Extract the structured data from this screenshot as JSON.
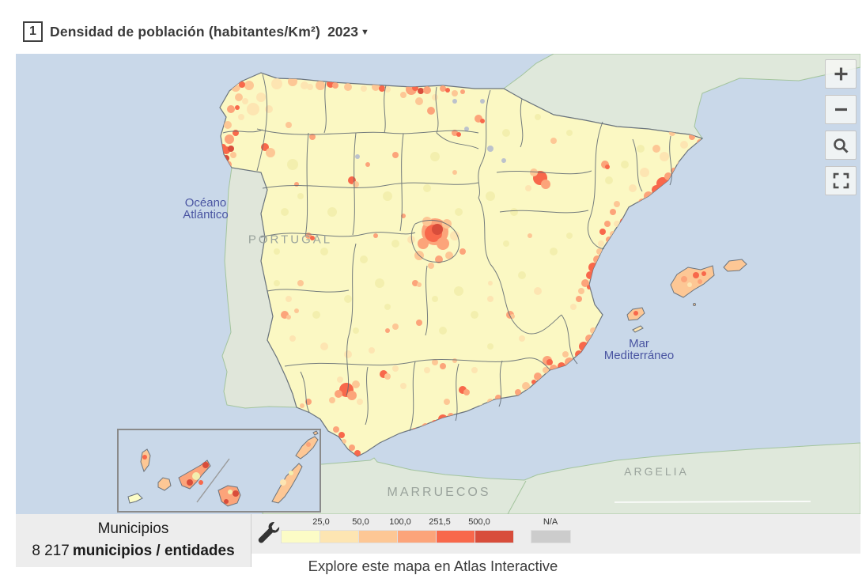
{
  "header": {
    "index": "1",
    "title": "Densidad de población (habitantes/Km²)",
    "year": "2023",
    "dropdown_icon": "▼"
  },
  "map": {
    "labels": {
      "ocean_line1": "Océano",
      "ocean_line2": "Atlántico",
      "portugal": "PORTUGAL",
      "sea_line1": "Mar",
      "sea_line2": "Mediterráneo",
      "morocco": "MARRUECOS",
      "algeria": "ARGELIA"
    },
    "controls": {
      "zoom_in": "+",
      "zoom_out": "−"
    },
    "colors": {
      "sea": "#c9d8e9",
      "foreign_land": "#dfe8db",
      "spain_base": "#fbf8c3",
      "province_border": "#5c6670",
      "sea_label": "#4a55a2",
      "country_label": "#9aa39c"
    }
  },
  "footer_panel": {
    "title": "Municipios",
    "count": "8 217",
    "count_label": "municipios / entidades"
  },
  "legend": {
    "breaks": [
      "25,0",
      "50,0",
      "100,0",
      "251,5",
      "500,0"
    ],
    "na_label": "N/A",
    "colors": [
      "#fcfcc6",
      "#fde5b2",
      "#fdc795",
      "#fca47a",
      "#f8684b",
      "#d84d3b"
    ],
    "na_color": "#cccccc"
  },
  "bottom_text": "Explore este mapa en Atlas Interactive"
}
